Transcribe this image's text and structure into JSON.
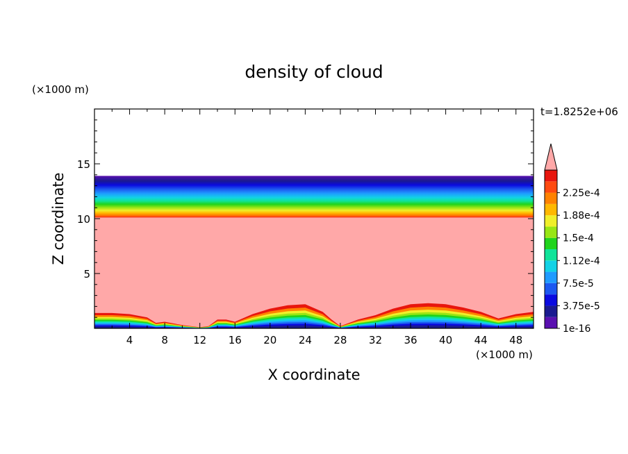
{
  "chart_data": {
    "type": "heatmap",
    "title": "density of cloud",
    "xlabel": "X coordinate",
    "ylabel": "Z coordinate",
    "x_unit": "(×1000 m)",
    "y_unit": "(×1000 m)",
    "time_label": "t=1.8252e+06",
    "xlim": [
      0,
      50
    ],
    "ylim": [
      0,
      20
    ],
    "x_ticks": [
      "4",
      "8",
      "12",
      "16",
      "20",
      "24",
      "28",
      "32",
      "36",
      "40",
      "44",
      "48"
    ],
    "y_ticks": [
      "5",
      "10",
      "15"
    ],
    "colorbar_levels": [
      1e-16,
      1.875e-05,
      3.75e-05,
      5.625e-05,
      7.5e-05,
      9.375e-05,
      0.0001125,
      0.00013125,
      0.00015,
      0.00016875,
      0.0001875,
      0.00020625,
      0.000225,
      0.00024375
    ],
    "colorbar_labels": [
      "1e-16",
      "3.75e-5",
      "7.5e-5",
      "1.12e-4",
      "1.5e-4",
      "1.88e-4",
      "2.25e-4"
    ],
    "colors": [
      "#5a10b0",
      "#1a1a90",
      "#0a0ae0",
      "#1c58f0",
      "#1f9bff",
      "#12d2e6",
      "#10e49a",
      "#20d41c",
      "#98e614",
      "#f0ef2a",
      "#ffb800",
      "#ff8200",
      "#ff4a10",
      "#e8160e"
    ],
    "over_color": "#ffa8a8",
    "cloud_layer": {
      "bottom_km": 9.8,
      "top_km": 13.9,
      "saturated_top_km": 10.1
    },
    "surface_profile": {
      "x": [
        0,
        2,
        4,
        6,
        7,
        8,
        10,
        12,
        13,
        14,
        15,
        16,
        18,
        20,
        22,
        24,
        26,
        27,
        28,
        30,
        32,
        34,
        36,
        38,
        40,
        42,
        44,
        46,
        48,
        50
      ],
      "top_km": [
        1.4,
        1.4,
        1.3,
        1.0,
        0.5,
        0.6,
        0.3,
        0.1,
        0.2,
        0.8,
        0.8,
        0.6,
        1.3,
        1.8,
        2.1,
        2.2,
        1.5,
        0.8,
        0.2,
        0.8,
        1.2,
        1.8,
        2.2,
        2.3,
        2.2,
        1.9,
        1.5,
        0.9,
        1.3,
        1.5
      ]
    }
  }
}
